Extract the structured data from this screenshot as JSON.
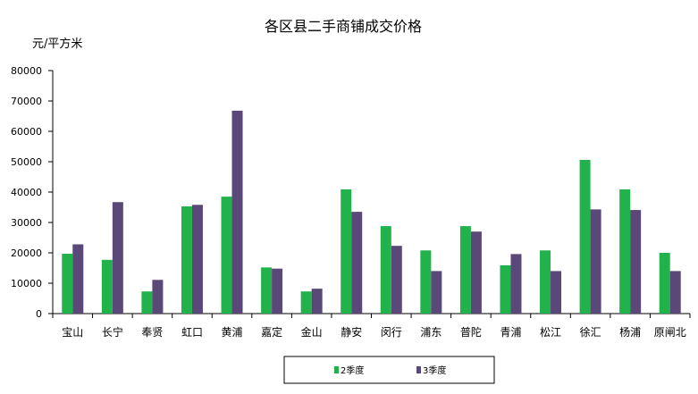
{
  "chart_data": {
    "type": "bar",
    "title": "各区县二手商铺成交价格",
    "ylabel": "元/平方米",
    "xlabel": "",
    "ylim": [
      0,
      80000
    ],
    "yticks": [
      0,
      10000,
      20000,
      30000,
      40000,
      50000,
      60000,
      70000,
      80000
    ],
    "grid": false,
    "legend_position": "bottom",
    "categories": [
      "宝山",
      "长宁",
      "奉贤",
      "虹口",
      "黄浦",
      "嘉定",
      "金山",
      "静安",
      "闵行",
      "浦东",
      "普陀",
      "青浦",
      "松江",
      "徐汇",
      "杨浦",
      "原闸北"
    ],
    "series": [
      {
        "name": "2季度",
        "color": "#22b24c",
        "values": [
          19700,
          17700,
          7300,
          35300,
          38500,
          15200,
          7300,
          40900,
          28800,
          20800,
          28800,
          15900,
          20800,
          50600,
          40900,
          20000
        ]
      },
      {
        "name": "3季度",
        "color": "#5a4878",
        "values": [
          22800,
          36700,
          11100,
          35800,
          66800,
          14800,
          8200,
          33500,
          22300,
          14000,
          27000,
          19600,
          14000,
          34300,
          34100,
          14000
        ]
      }
    ]
  }
}
